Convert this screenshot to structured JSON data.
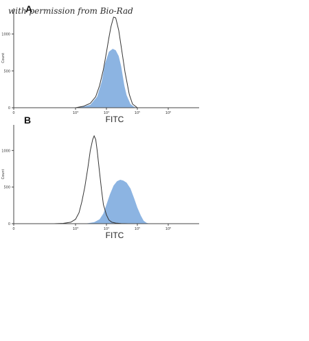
{
  "watermark": "with permission from Bio-Rad",
  "colors": {
    "fill": "#8cb4e2",
    "outline": "#333333",
    "axis": "#444444"
  },
  "chart_data": [
    {
      "type": "area",
      "panel_label": "A",
      "xlabel": "FITC",
      "ylabel": "Count",
      "xscale": "log",
      "xlim": [
        10,
        10000000
      ],
      "ylim": [
        0,
        1350
      ],
      "yticks": [
        {
          "value": 0,
          "label": "0"
        },
        {
          "value": 500,
          "label": "500"
        },
        {
          "value": 1000,
          "label": "1000"
        }
      ],
      "xticks": [
        {
          "value": 10,
          "label": "0"
        },
        {
          "value": 1000,
          "label": "10³"
        },
        {
          "value": 10000,
          "label": "10⁴"
        },
        {
          "value": 100000,
          "label": "10⁵"
        },
        {
          "value": 1000000,
          "label": "10⁶"
        }
      ],
      "series": [
        {
          "style": "filled",
          "x": [
            1000,
            1600,
            3000,
            5000,
            7000,
            9000,
            12000,
            16000,
            20000,
            25000,
            30000,
            38000,
            45000,
            60000,
            80000,
            100000
          ],
          "y": [
            0,
            10,
            40,
            150,
            350,
            600,
            760,
            800,
            780,
            700,
            560,
            300,
            170,
            50,
            10,
            0
          ]
        },
        {
          "style": "outline",
          "x": [
            1000,
            1800,
            3000,
            4500,
            6000,
            8000,
            10000,
            12000,
            14000,
            17000,
            20000,
            25000,
            30000,
            40000,
            55000,
            70000,
            100000
          ],
          "y": [
            0,
            20,
            60,
            150,
            300,
            520,
            750,
            950,
            1100,
            1230,
            1220,
            1050,
            830,
            480,
            180,
            50,
            0
          ]
        }
      ]
    },
    {
      "type": "area",
      "panel_label": "B",
      "xlabel": "FITC",
      "ylabel": "Count",
      "xscale": "log",
      "xlim": [
        10,
        10000000
      ],
      "ylim": [
        0,
        1350
      ],
      "yticks": [
        {
          "value": 0,
          "label": "0"
        },
        {
          "value": 500,
          "label": "500"
        },
        {
          "value": 1000,
          "label": "1000"
        }
      ],
      "xticks": [
        {
          "value": 10,
          "label": "0"
        },
        {
          "value": 1000,
          "label": "10³"
        },
        {
          "value": 10000,
          "label": "10⁴"
        },
        {
          "value": 100000,
          "label": "10⁵"
        },
        {
          "value": 1000000,
          "label": "10⁶"
        }
      ],
      "series": [
        {
          "style": "filled",
          "x": [
            2000,
            4000,
            6000,
            8000,
            10000,
            13000,
            17000,
            22000,
            28000,
            35000,
            45000,
            60000,
            80000,
            100000,
            130000,
            160000,
            200000,
            250000
          ],
          "y": [
            0,
            20,
            60,
            140,
            260,
            400,
            520,
            580,
            600,
            590,
            560,
            480,
            340,
            220,
            110,
            40,
            10,
            0
          ]
        },
        {
          "style": "outline",
          "x": [
            200,
            400,
            700,
            1000,
            1300,
            1600,
            2000,
            2500,
            3000,
            3600,
            4000,
            4500,
            5000,
            6000,
            7000,
            8000,
            10000,
            12000,
            15000,
            20000,
            30000,
            50000
          ],
          "y": [
            0,
            5,
            20,
            60,
            150,
            300,
            500,
            760,
            1000,
            1150,
            1200,
            1150,
            1000,
            700,
            450,
            260,
            120,
            50,
            20,
            8,
            2,
            0
          ]
        }
      ]
    }
  ]
}
